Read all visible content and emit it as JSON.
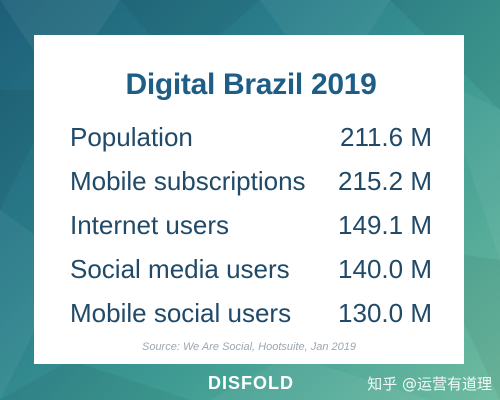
{
  "title": "Digital Brazil 2019",
  "rows": [
    {
      "label": "Population",
      "value": "211.6 M"
    },
    {
      "label": "Mobile subscriptions",
      "value": "215.2 M"
    },
    {
      "label": "Internet users",
      "value": "149.1 M"
    },
    {
      "label": "Social media users",
      "value": "140.0 M"
    },
    {
      "label": "Mobile social users",
      "value": "130.0 M"
    }
  ],
  "source": "Source: We Are Social, Hootsuite, Jan 2019",
  "brand": "DISFOLD",
  "watermark": "知乎 @运营有道理",
  "colors": {
    "title": "#1e5d86",
    "row_text": "#214a69",
    "source_text": "#9aa7b2",
    "background_start": "#1d5f78",
    "background_end": "#6fbca0",
    "card": "#ffffff"
  }
}
